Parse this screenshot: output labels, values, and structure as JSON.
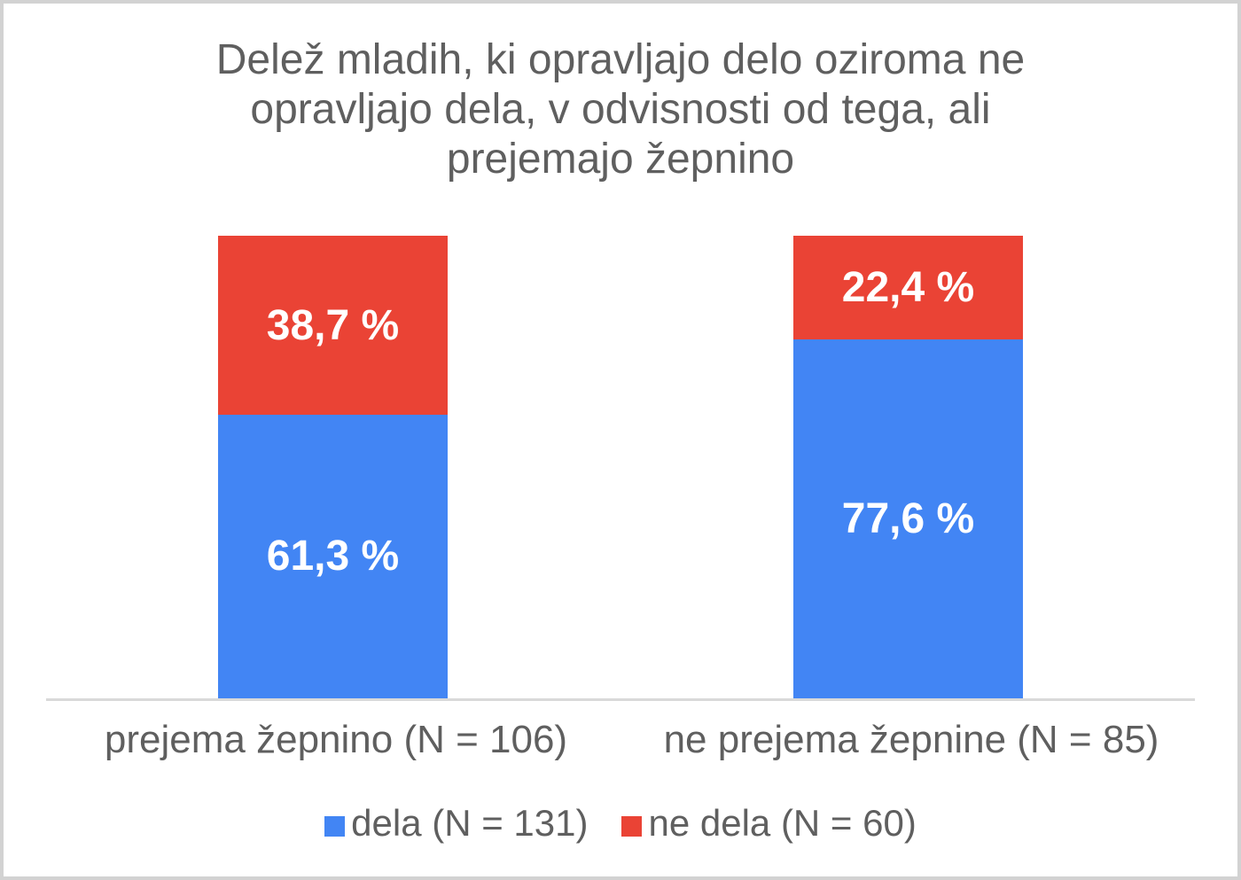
{
  "chart_data": {
    "type": "bar",
    "variant": "stacked-percent",
    "title": "Delež mladih, ki opravljajo delo oziroma ne opravljajo dela, v odvisnosti od tega, ali prejemajo žepnino",
    "categories": [
      "prejema žepnino (N = 106)",
      "ne prejema žepnine (N = 85)"
    ],
    "series": [
      {
        "name": "dela (N = 131)",
        "color": "#4285F4",
        "values": [
          61.3,
          77.6
        ],
        "value_labels": [
          "61,3 %",
          "77,6 %"
        ]
      },
      {
        "name": "ne dela (N = 60)",
        "color": "#EA4335",
        "values": [
          38.7,
          22.4
        ],
        "value_labels": [
          "38,7 %",
          "22,4 %"
        ]
      }
    ],
    "ylim": [
      0,
      100
    ],
    "grid": false,
    "legend_position": "bottom",
    "axis_line_color": "#D9D9D9",
    "text_color": "#5F5F5F",
    "data_label_color": "#FFFFFF"
  }
}
